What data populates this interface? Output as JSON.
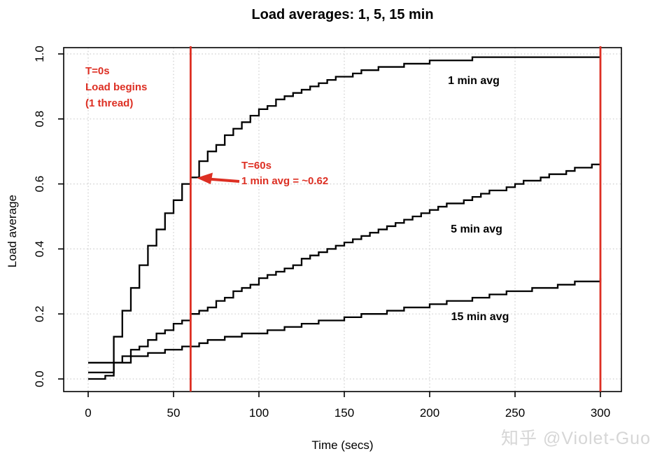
{
  "title": "Load averages: 1, 5, 15 min",
  "watermark": "知乎 @Violet-Guo",
  "colors": {
    "accent_red": "#dd2f23",
    "curve_black": "#000000",
    "grid_gray": "#cccccc",
    "watermark_gray": "#d6d6d6"
  },
  "annotations": {
    "t0": {
      "lines": [
        "T=0s",
        "Load begins",
        "(1 thread)"
      ]
    },
    "t60": {
      "lines": [
        "T=60s",
        "1 min avg = ~0.62"
      ]
    }
  },
  "chart_data": {
    "type": "line",
    "style": "step-staircase",
    "title": "Load averages: 1, 5, 15 min",
    "xlabel": "Time (secs)",
    "ylabel": "Load average",
    "xlim": [
      0,
      300
    ],
    "ylim": [
      0,
      1.0
    ],
    "x_tick_values": [
      0,
      50,
      100,
      150,
      200,
      250,
      300
    ],
    "x_tick_labels": [
      "0",
      "50",
      "100",
      "150",
      "200",
      "250",
      "300"
    ],
    "y_tick_values": [
      0.0,
      0.2,
      0.4,
      0.6,
      0.8,
      1.0
    ],
    "y_tick_labels": [
      "0.0",
      "0.2",
      "0.4",
      "0.6",
      "0.8",
      "1.0"
    ],
    "grid": "dotted",
    "legend_position": "inline-curve-labels",
    "x_step": 5,
    "event_lines_x": [
      60,
      300
    ],
    "series": [
      {
        "name": "1 min avg",
        "values": [
          0.0,
          0.0,
          0.01,
          0.13,
          0.21,
          0.28,
          0.35,
          0.41,
          0.46,
          0.51,
          0.55,
          0.6,
          0.62,
          0.67,
          0.7,
          0.72,
          0.75,
          0.77,
          0.79,
          0.81,
          0.83,
          0.84,
          0.86,
          0.87,
          0.88,
          0.89,
          0.9,
          0.91,
          0.92,
          0.93,
          0.93,
          0.94,
          0.95,
          0.95,
          0.96,
          0.96,
          0.96,
          0.97,
          0.97,
          0.97,
          0.98,
          0.98,
          0.98,
          0.98,
          0.98,
          0.99,
          0.99,
          0.99,
          0.99,
          0.99,
          0.99,
          0.99,
          0.99,
          0.99,
          0.99,
          0.99,
          0.99,
          0.99,
          0.99,
          0.99,
          0.99
        ]
      },
      {
        "name": "5 min avg",
        "values": [
          0.02,
          0.02,
          0.02,
          0.05,
          0.07,
          0.09,
          0.1,
          0.12,
          0.14,
          0.15,
          0.17,
          0.18,
          0.2,
          0.21,
          0.22,
          0.24,
          0.25,
          0.27,
          0.28,
          0.29,
          0.31,
          0.32,
          0.33,
          0.34,
          0.35,
          0.37,
          0.38,
          0.39,
          0.4,
          0.41,
          0.42,
          0.43,
          0.44,
          0.45,
          0.46,
          0.47,
          0.48,
          0.49,
          0.5,
          0.51,
          0.52,
          0.53,
          0.54,
          0.54,
          0.55,
          0.56,
          0.57,
          0.58,
          0.58,
          0.59,
          0.6,
          0.61,
          0.61,
          0.62,
          0.63,
          0.63,
          0.64,
          0.65,
          0.65,
          0.66,
          0.66
        ]
      },
      {
        "name": "15 min avg",
        "values": [
          0.05,
          0.05,
          0.05,
          0.05,
          0.05,
          0.07,
          0.07,
          0.08,
          0.08,
          0.09,
          0.09,
          0.1,
          0.1,
          0.11,
          0.12,
          0.12,
          0.13,
          0.13,
          0.14,
          0.14,
          0.14,
          0.15,
          0.15,
          0.16,
          0.16,
          0.17,
          0.17,
          0.18,
          0.18,
          0.18,
          0.19,
          0.19,
          0.2,
          0.2,
          0.2,
          0.21,
          0.21,
          0.22,
          0.22,
          0.22,
          0.23,
          0.23,
          0.24,
          0.24,
          0.24,
          0.25,
          0.25,
          0.26,
          0.26,
          0.27,
          0.27,
          0.27,
          0.28,
          0.28,
          0.28,
          0.29,
          0.29,
          0.3,
          0.3,
          0.3,
          0.31
        ]
      }
    ]
  }
}
